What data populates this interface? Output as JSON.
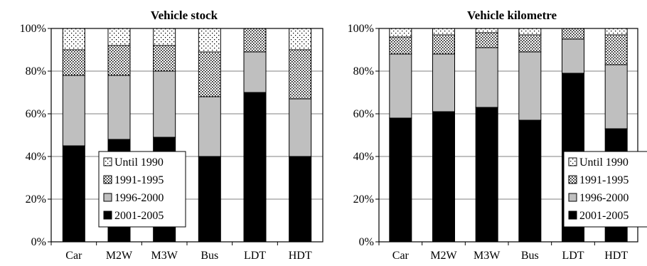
{
  "chart_data": [
    {
      "type": "bar",
      "stacked": true,
      "title": "Vehicle stock",
      "xlabel": "",
      "ylabel": "",
      "categories": [
        "Car",
        "M2W",
        "M3W",
        "Bus",
        "LDT",
        "HDT"
      ],
      "yticks": [
        "0%",
        "20%",
        "40%",
        "60%",
        "80%",
        "100%"
      ],
      "ylim": [
        0,
        100
      ],
      "grid": true,
      "legend_position": "bottom-right",
      "series": [
        {
          "name": "2001-2005",
          "values": [
            45,
            48,
            49,
            40,
            70,
            40
          ]
        },
        {
          "name": "1996-2000",
          "values": [
            33,
            30,
            31,
            28,
            19,
            27
          ]
        },
        {
          "name": "1991-1995",
          "values": [
            12,
            14,
            12,
            21,
            11,
            23
          ]
        },
        {
          "name": "Until 1990",
          "values": [
            10,
            8,
            8,
            11,
            0,
            10
          ]
        }
      ]
    },
    {
      "type": "bar",
      "stacked": true,
      "title": "Vehicle kilometre",
      "xlabel": "",
      "ylabel": "",
      "categories": [
        "Car",
        "M2W",
        "M3W",
        "Bus",
        "LDT",
        "HDT"
      ],
      "yticks": [
        "0%",
        "20%",
        "40%",
        "60%",
        "80%",
        "100%"
      ],
      "ylim": [
        0,
        100
      ],
      "grid": true,
      "legend_position": "bottom-right",
      "series": [
        {
          "name": "2001-2005",
          "values": [
            58,
            61,
            63,
            57,
            79,
            53
          ]
        },
        {
          "name": "1996-2000",
          "values": [
            30,
            27,
            28,
            32,
            16,
            30
          ]
        },
        {
          "name": "1991-1995",
          "values": [
            8,
            9,
            7,
            8,
            5,
            14
          ]
        },
        {
          "name": "Until 1990",
          "values": [
            4,
            3,
            2,
            3,
            0,
            3
          ]
        }
      ]
    }
  ],
  "legend_order": [
    "Until 1990",
    "1991-1995",
    "1996-2000",
    "2001-2005"
  ]
}
